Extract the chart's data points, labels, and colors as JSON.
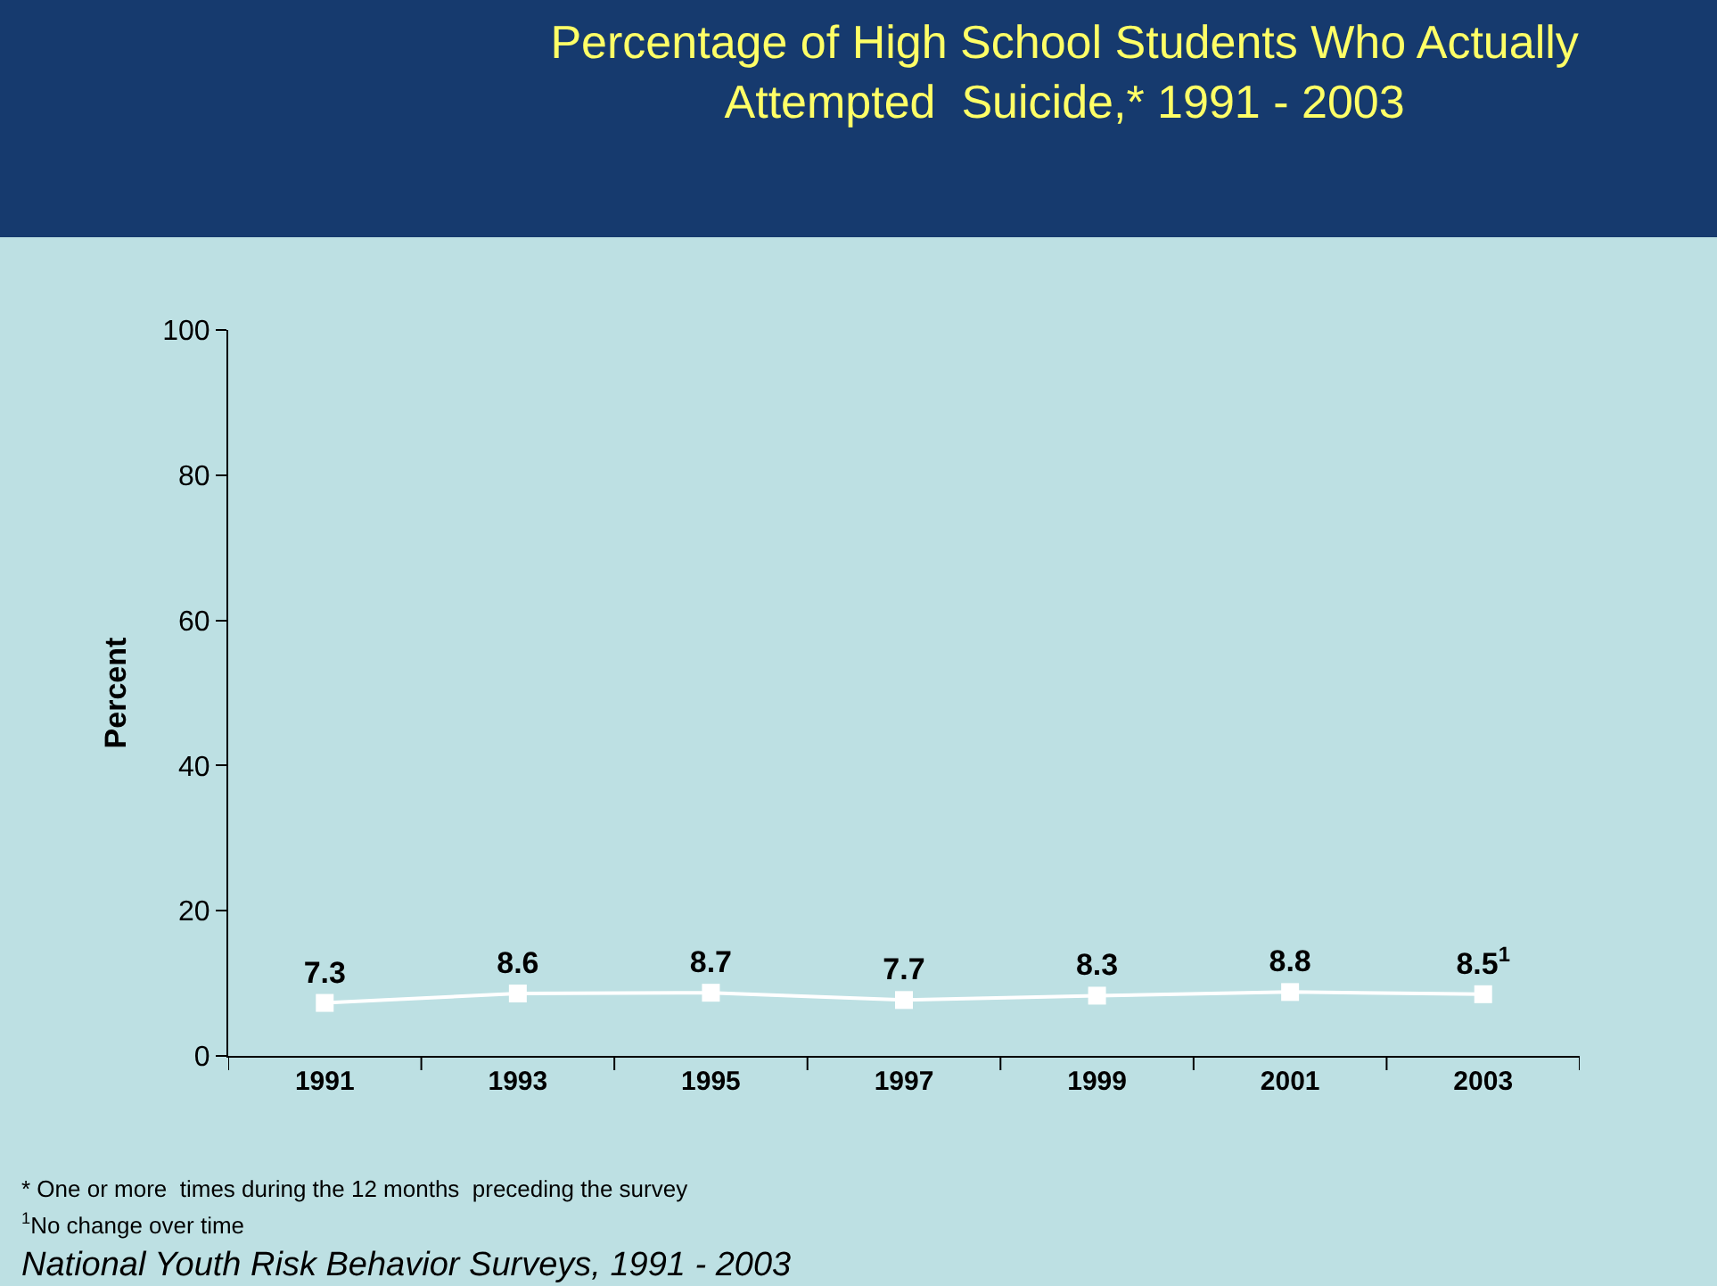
{
  "chart_data": {
    "type": "line",
    "title": "Percentage of High School Students Who Actually\nAttempted  Suicide,* 1991 - 2003",
    "ylabel": "Percent",
    "categories": [
      "1991",
      "1993",
      "1995",
      "1997",
      "1999",
      "2001",
      "2003"
    ],
    "series": [
      {
        "color": "#ffffff",
        "values": [
          7.3,
          8.6,
          8.7,
          7.7,
          8.3,
          8.8,
          8.5
        ],
        "value_labels": [
          "7.3",
          "8.6",
          "8.7",
          "7.7",
          "8.3",
          "8.8",
          "8.5$^{1}$"
        ]
      }
    ],
    "ylim": [
      0,
      100
    ],
    "yticks": [
      0,
      20,
      40,
      60,
      80,
      100
    ],
    "grid": false,
    "marker": "square",
    "line_style": "solid",
    "annotations": [
      "* One or more  times during the 12 months  preceding the survey",
      "$^{1}$No change over time",
      "National Youth Risk Behavior Surveys, 1991 - 2003"
    ]
  }
}
